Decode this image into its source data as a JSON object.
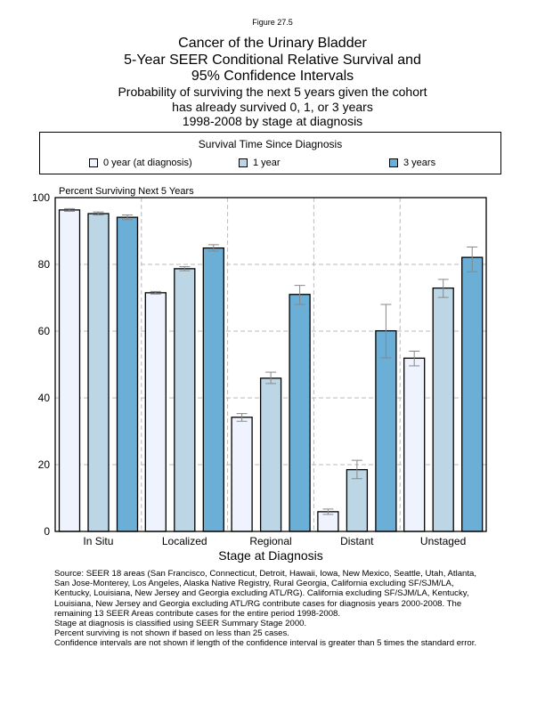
{
  "figure_label": "Figure 27.5",
  "title_lines": [
    "Cancer of the Urinary Bladder",
    "5-Year SEER Conditional Relative Survival and",
    "95% Confidence Intervals"
  ],
  "subtitle_lines": [
    "Probability of surviving the next 5 years given the cohort",
    "has already survived 0, 1, or 3 years",
    "1998-2008 by stage at diagnosis"
  ],
  "legend": {
    "title": "Survival Time Since Diagnosis",
    "placement": "top"
  },
  "chart_data": {
    "type": "bar",
    "ylabel": "Percent Surviving Next 5 Years",
    "xlabel": "Stage at Diagnosis",
    "ylim": [
      0,
      100
    ],
    "yticks": [
      0,
      20,
      40,
      60,
      80,
      100
    ],
    "grid": true,
    "categories": [
      "In Situ",
      "Localized",
      "Regional",
      "Distant",
      "Unstaged"
    ],
    "series": [
      {
        "name": "0 year (at diagnosis)",
        "color": "#eef3fd",
        "values": [
          96.3,
          71.5,
          34.2,
          5.9,
          51.9
        ],
        "ci_low": [
          95.9,
          71.1,
          33.0,
          5.1,
          49.6
        ],
        "ci_high": [
          96.7,
          71.9,
          35.3,
          6.7,
          54.0
        ]
      },
      {
        "name": "1 year",
        "color": "#bcd6e6",
        "values": [
          95.2,
          78.7,
          45.9,
          18.5,
          72.9
        ],
        "ci_low": [
          94.8,
          78.1,
          44.3,
          15.8,
          70.1
        ],
        "ci_high": [
          95.7,
          79.3,
          47.7,
          21.3,
          75.5
        ]
      },
      {
        "name": "3 years",
        "color": "#6baed6",
        "values": [
          94.1,
          84.9,
          71.0,
          60.1,
          82.1
        ],
        "ci_low": [
          93.4,
          84.0,
          68.0,
          52.0,
          77.8
        ],
        "ci_high": [
          94.8,
          85.9,
          73.7,
          68.0,
          85.2
        ]
      }
    ]
  },
  "source_lines": [
    "Source:  SEER 18 areas (San Francisco, Connecticut, Detroit, Hawaii, Iowa, New Mexico, Seattle, Utah, Atlanta,",
    "San Jose-Monterey, Los Angeles, Alaska Native Registry, Rural Georgia, California excluding SF/SJM/LA,",
    "Kentucky, Louisiana, New Jersey and Georgia excluding ATL/RG). California excluding SF/SJM/LA, Kentucky,",
    "Louisiana, New Jersey and Georgia excluding ATL/RG contribute cases for diagnosis years 2000-2008. The",
    "remaining 13 SEER Areas contribute cases for the entire period 1998-2008.",
    "Stage at diagnosis is classified using SEER Summary Stage 2000.",
    "Percent surviving is not shown if based on less than 25 cases.",
    "Confidence intervals are not shown if length of the confidence interval is greater than 5 times the standard error."
  ]
}
